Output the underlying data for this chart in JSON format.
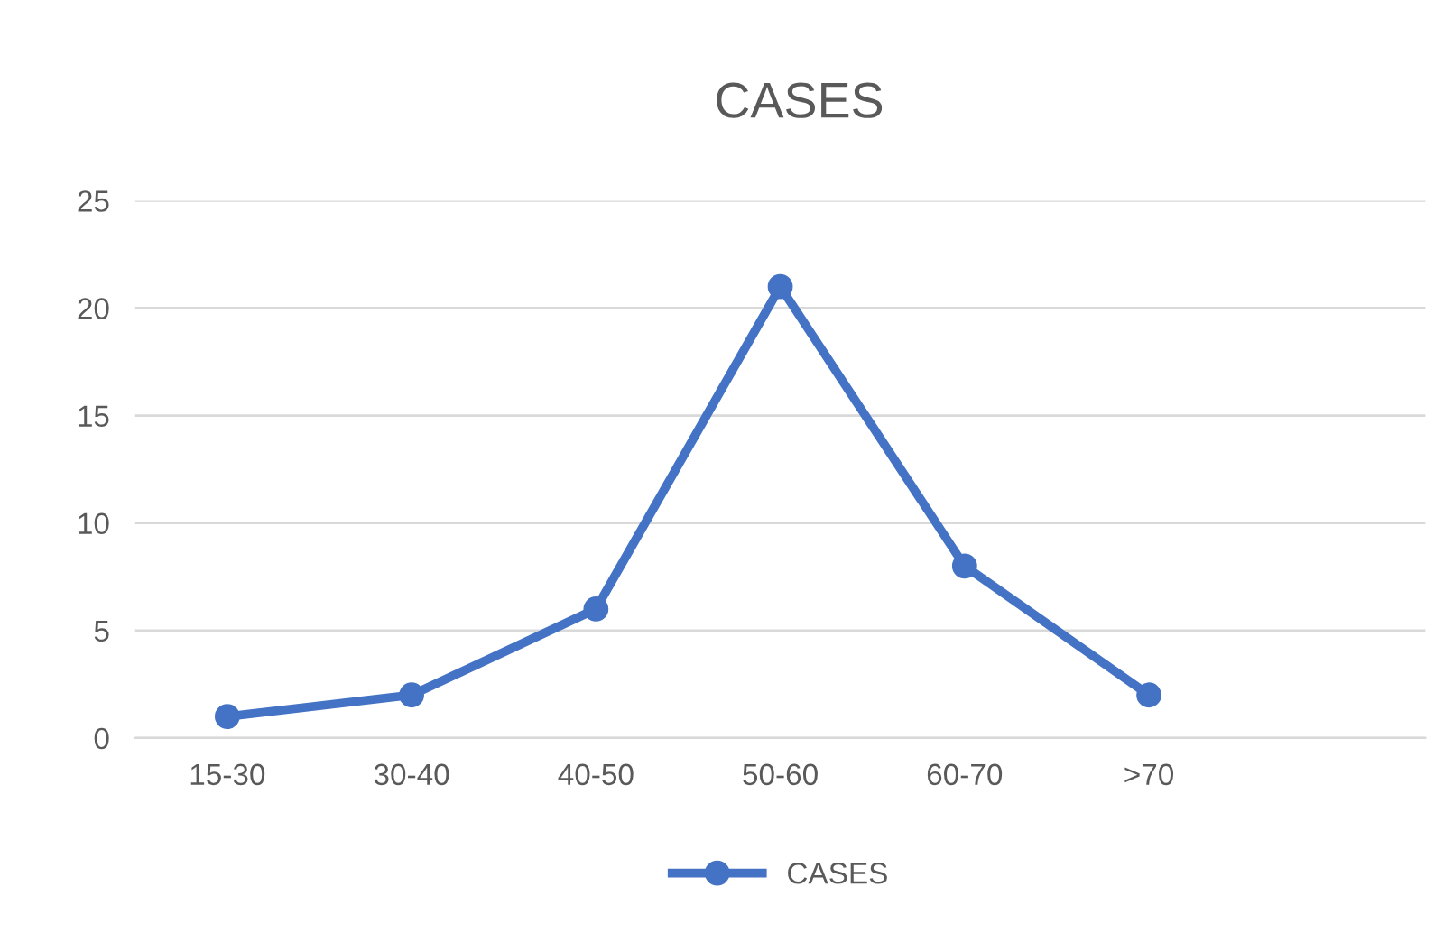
{
  "chart_data": {
    "type": "line",
    "title": "CASES",
    "categories": [
      "15-30",
      "30-40",
      "40-50",
      "50-60",
      "60-70",
      ">70",
      null
    ],
    "series": [
      {
        "name": "CASES",
        "color": "#4472c4",
        "values": [
          1,
          2,
          6,
          21,
          8,
          2,
          null
        ]
      }
    ],
    "ylim": [
      0,
      25
    ],
    "yticks": [
      0,
      5,
      10,
      15,
      20,
      25
    ],
    "grid": "y",
    "legend": "bottom",
    "marker": "circle",
    "line_style": "solid"
  }
}
